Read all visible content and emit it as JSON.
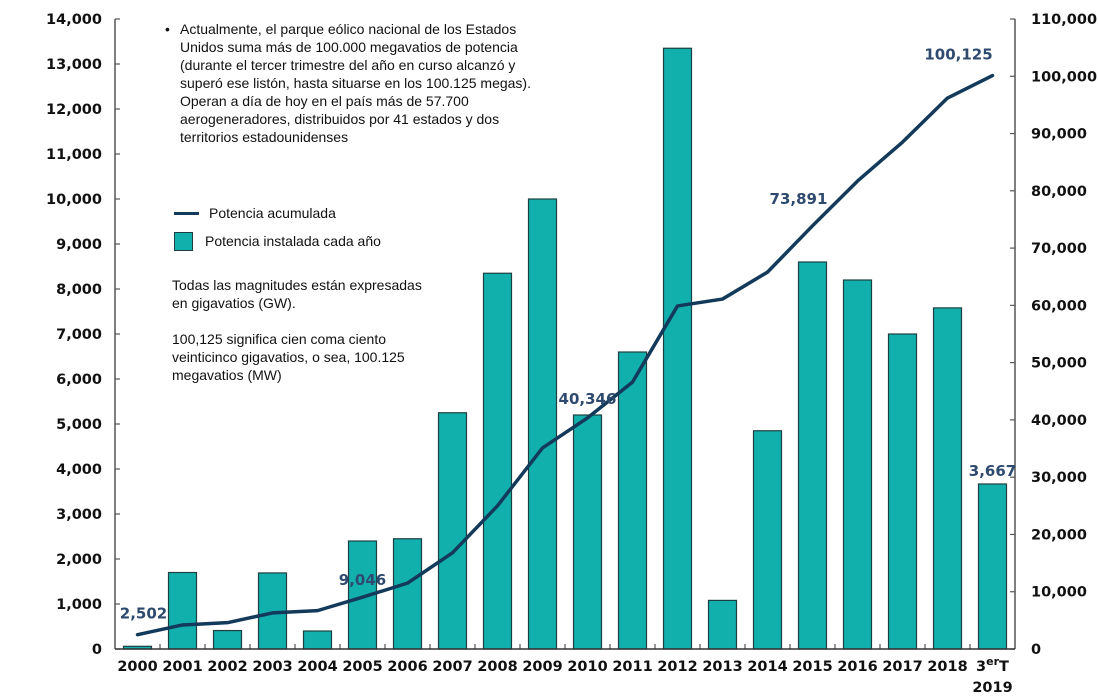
{
  "chart_data": {
    "type": "bar+line",
    "title": "",
    "categories": [
      "2000",
      "2001",
      "2002",
      "2003",
      "2004",
      "2005",
      "2006",
      "2007",
      "2008",
      "2009",
      "2010",
      "2011",
      "2012",
      "2013",
      "2014",
      "2015",
      "2016",
      "2017",
      "2018",
      "3erT 2019"
    ],
    "category_labels": [
      {
        "line1": "2000"
      },
      {
        "line1": "2001"
      },
      {
        "line1": "2002"
      },
      {
        "line1": "2003"
      },
      {
        "line1": "2004"
      },
      {
        "line1": "2005"
      },
      {
        "line1": "2006"
      },
      {
        "line1": "2007"
      },
      {
        "line1": "2008"
      },
      {
        "line1": "2009"
      },
      {
        "line1": "2010"
      },
      {
        "line1": "2011"
      },
      {
        "line1": "2012"
      },
      {
        "line1": "2013"
      },
      {
        "line1": "2014"
      },
      {
        "line1": "2015"
      },
      {
        "line1": "2016"
      },
      {
        "line1": "2017"
      },
      {
        "line1": "2018"
      },
      {
        "line1": "3",
        "sup": "er",
        "suffix": "T",
        "line2": "2019"
      }
    ],
    "series": [
      {
        "name": "Potencia instalada cada año",
        "type": "bar",
        "axis": "left",
        "color": "#12b0ad",
        "values": [
          60,
          1700,
          410,
          1690,
          400,
          2400,
          2450,
          5250,
          8350,
          10000,
          5200,
          6600,
          13350,
          1080,
          4850,
          8600,
          8200,
          7000,
          7580,
          3667
        ]
      },
      {
        "name": "Potencia acumulada",
        "type": "line",
        "axis": "right",
        "color": "#133a5a",
        "values": [
          2502,
          4200,
          4600,
          6300,
          6700,
          9046,
          11500,
          16800,
          25000,
          35100,
          40346,
          46600,
          59900,
          61100,
          65800,
          73891,
          81700,
          88500,
          96200,
          100125
        ]
      }
    ],
    "annotations": [
      {
        "series": "Potencia acumulada",
        "index": 0,
        "text": "2,502"
      },
      {
        "series": "Potencia acumulada",
        "index": 5,
        "text": "9,046"
      },
      {
        "series": "Potencia acumulada",
        "index": 10,
        "text": "40,346"
      },
      {
        "series": "Potencia acumulada",
        "index": 15,
        "text": "73,891"
      },
      {
        "series": "Potencia acumulada",
        "index": 19,
        "text": "100,125"
      },
      {
        "series": "Potencia instalada cada año",
        "index": 19,
        "text": "3,667"
      }
    ],
    "y_left": {
      "ylim": [
        0,
        14000
      ],
      "ticks": [
        "0",
        "1,000",
        "2,000",
        "3,000",
        "4,000",
        "5,000",
        "6,000",
        "7,000",
        "8,000",
        "9,000",
        "10,000",
        "11,000",
        "12,000",
        "13,000",
        "14,000"
      ]
    },
    "y_right": {
      "ylim": [
        0,
        110000
      ],
      "ticks": [
        "0",
        "10,000",
        "20,000",
        "30,000",
        "40,000",
        "50,000",
        "60,000",
        "70,000",
        "80,000",
        "90,000",
        "100,000",
        "110,000"
      ]
    },
    "xlabel": "",
    "ylabel": "",
    "grid": false,
    "legend_placement": "top-left"
  },
  "notes": {
    "bullet": "•",
    "main": "Actualmente, el parque eólico nacional de los Estados Unidos suma más de 100.000 megavatios de potencia (durante el tercer trimestre del año en curso alcanzó y superó ese listón, hasta situarse en los 100.125 megas). Operan a día de hoy en el país más de 57.700 aerogeneradores, distribuidos por 41 estados y dos territorios estadounidenses",
    "units": "Todas las magnitudes están expresadas en gigavatios (GW).",
    "explanation": "100,125 significa cien coma ciento veinticinco gigavatios, o sea, 100.125 megavatios (MW)"
  },
  "legend": {
    "line_label": "Potencia acumulada",
    "bar_label": "Potencia instalada cada año"
  }
}
